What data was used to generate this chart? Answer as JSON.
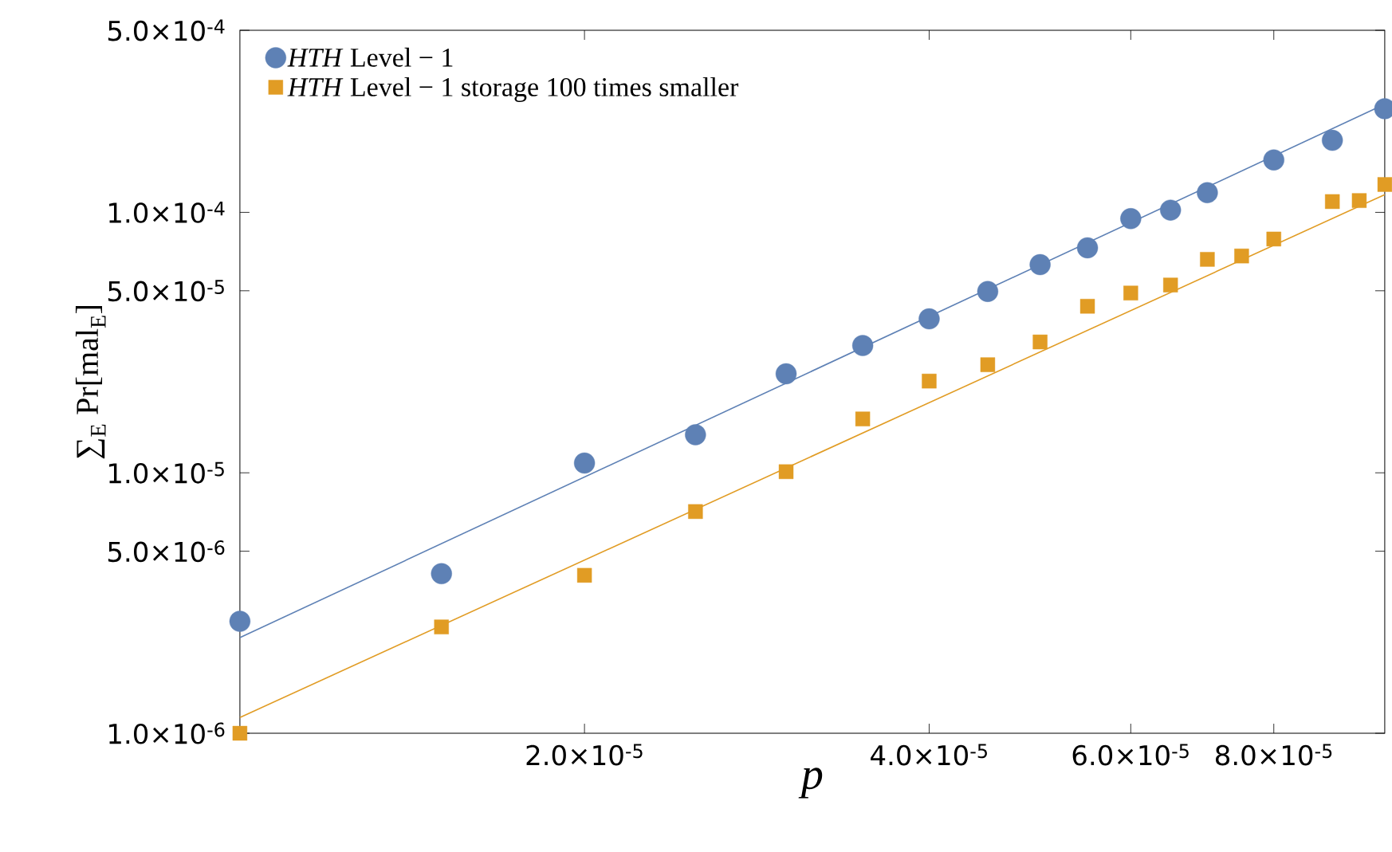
{
  "chart_data": {
    "type": "scatter",
    "log": "xy",
    "xlabel": "p",
    "ylabel": "∑$_{E}$ Pr[mal$_{E}$]",
    "legend": "top left",
    "xlim": [
      1e-05,
      0.0001
    ],
    "ylim": [
      1e-06,
      0.0005
    ],
    "xticks": [
      {
        "value": 2e-05,
        "label": "2.0×10$^{-5}$"
      },
      {
        "value": 4e-05,
        "label": "4.0×10$^{-5}$"
      },
      {
        "value": 6e-05,
        "label": "6.0×10$^{-5}$"
      },
      {
        "value": 8e-05,
        "label": "8.0×10$^{-5}$"
      }
    ],
    "yticks": [
      {
        "value": 1e-06,
        "label": "1.0×10$^{-6}$"
      },
      {
        "value": 5e-06,
        "label": "5.0×10$^{-6}$"
      },
      {
        "value": 1e-05,
        "label": "1.0×10$^{-5}$"
      },
      {
        "value": 5e-05,
        "label": "5.0×10$^{-5}$"
      },
      {
        "value": 0.0001,
        "label": "1.0×10$^{-4}$"
      },
      {
        "value": 0.0005,
        "label": "5.0×10$^{-4}$"
      }
    ],
    "series": [
      {
        "name": "*HTH* Level − 1",
        "marker": "circle",
        "color": "#5e81b5",
        "x": [
          1e-05,
          1.5e-05,
          2e-05,
          2.5e-05,
          3e-05,
          3.5e-05,
          4e-05,
          4.5e-05,
          5e-05,
          5.5e-05,
          6e-05,
          6.5e-05,
          7e-05,
          8e-05,
          9e-05,
          0.0001
        ],
        "values": [
          2.69e-06,
          4.1e-06,
          1.09e-05,
          1.4e-05,
          2.4e-05,
          3.08e-05,
          3.9e-05,
          4.97e-05,
          6.3e-05,
          7.31e-05,
          9.46e-05,
          0.000102,
          0.000119,
          0.000159,
          0.000189,
          0.00025
        ]
      },
      {
        "name": "*HTH* Level − 1 storage 100 times smaller",
        "marker": "square",
        "color": "#e19c24",
        "x": [
          1e-05,
          1.5e-05,
          2e-05,
          2.5e-05,
          3e-05,
          3.5e-05,
          4e-05,
          4.5e-05,
          5e-05,
          5.5e-05,
          6e-05,
          6.5e-05,
          7e-05,
          7.5e-05,
          8e-05,
          9e-05,
          9.5e-05,
          0.0001
        ],
        "values": [
          1e-06,
          2.56e-06,
          4.04e-06,
          7.1e-06,
          1.01e-05,
          1.61e-05,
          2.25e-05,
          2.6e-05,
          3.18e-05,
          4.36e-05,
          4.9e-05,
          5.26e-05,
          6.6e-05,
          6.8e-05,
          7.9e-05,
          0.00011,
          0.000111,
          0.000128
        ]
      },
      {
        "type": "line",
        "color": "#5e81b5",
        "x": [
          1e-05,
          0.0001
        ],
        "values": [
          2.33e-06,
          0.00026
        ]
      },
      {
        "type": "line",
        "color": "#e19c24",
        "x": [
          1e-05,
          0.0001
        ],
        "values": [
          1.15e-06,
          0.000117
        ]
      }
    ]
  }
}
